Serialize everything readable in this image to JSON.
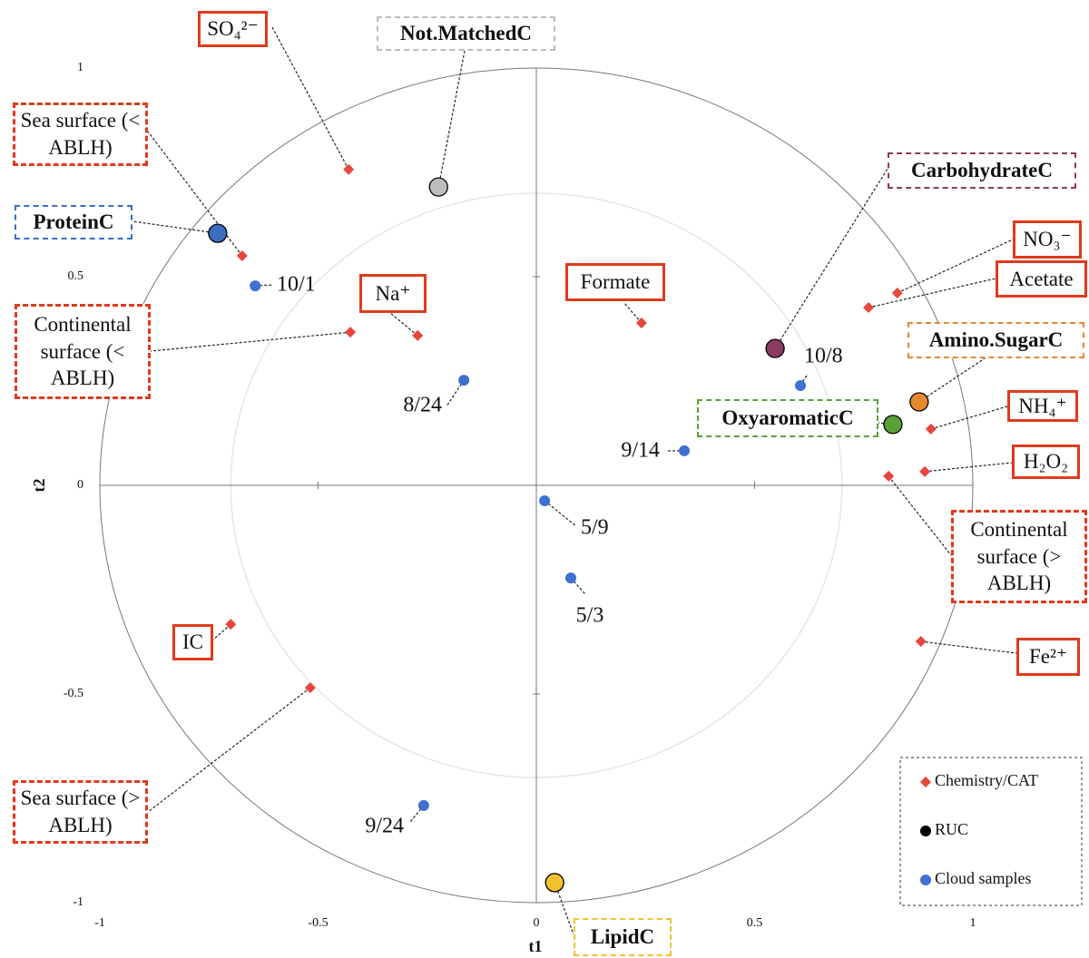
{
  "chart_data": {
    "type": "scatter",
    "x_label": "t1",
    "y_label": "t2",
    "xlim": [
      -1,
      1
    ],
    "ylim": [
      -1,
      1
    ],
    "xticks": [
      -1,
      -0.5,
      0,
      0.5,
      1
    ],
    "yticks": [
      -1,
      -0.5,
      0,
      0.5,
      1
    ],
    "reference_circles": [
      1,
      0.7
    ],
    "legend_position": "lower right",
    "series": [
      {
        "name": "Chemistry/CAT",
        "color": "#e8453c",
        "marker": "diamond",
        "x": [
          -0.43,
          -0.674,
          -0.426,
          -0.272,
          0.241,
          0.827,
          0.761,
          0.904,
          0.89,
          0.807,
          0.881,
          -0.7,
          -0.518
        ],
        "y": [
          0.757,
          0.55,
          0.367,
          0.359,
          0.389,
          0.461,
          0.426,
          0.135,
          0.033,
          0.022,
          -0.374,
          -0.333,
          -0.485
        ],
        "labels": [
          "SO₄²⁻",
          "Sea surface (< ABLH)",
          "Continental surface (< ABLH)",
          "Na⁺",
          "Formate",
          "NO₃⁻",
          "Acetate",
          "NH₄⁺",
          "H₂O₂",
          "Continental surface (> ABLH)",
          "Fe²⁺",
          "IC",
          "Sea surface (> ABLH)"
        ]
      },
      {
        "name": "RUC",
        "color": "#000000",
        "marker": "circle",
        "x": [
          -0.224,
          -0.73,
          0.547,
          0.877,
          0.817,
          0.042
        ],
        "y": [
          0.715,
          0.604,
          0.328,
          0.2,
          0.146,
          -0.952
        ],
        "point_colors": [
          "#bdbdbd",
          "#3a6fc0",
          "#8b3a62",
          "#e68a30",
          "#5aa03a",
          "#f2c12e"
        ],
        "labels": [
          "Not.MatchedC",
          "ProteinC",
          "CarbohydrateC",
          "Amino.SugarC",
          "OxyaromaticC",
          "LipidC"
        ]
      },
      {
        "name": "Cloud samples",
        "color": "#3f6fd0",
        "marker": "dot",
        "x": [
          -0.644,
          -0.166,
          0.605,
          0.339,
          0.019,
          0.079,
          -0.258
        ],
        "y": [
          0.478,
          0.252,
          0.239,
          0.083,
          -0.037,
          -0.222,
          -0.767
        ],
        "labels": [
          "10/1",
          "8/24",
          "10/8",
          "9/14",
          "5/9",
          "5/3",
          "9/24"
        ]
      }
    ]
  }
}
